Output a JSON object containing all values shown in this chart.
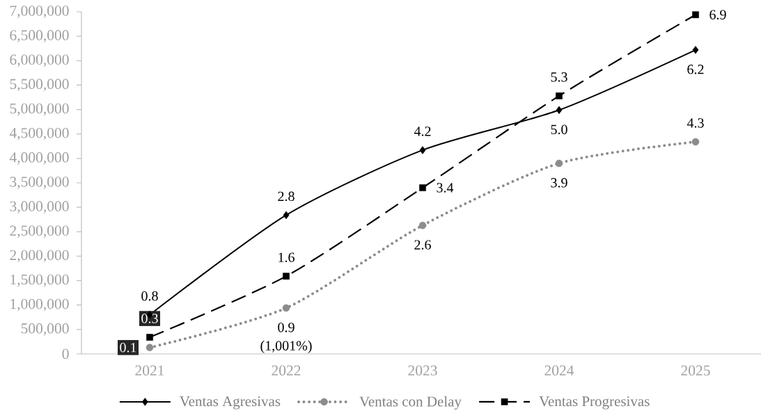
{
  "chart_data": {
    "type": "line",
    "categories": [
      "2021",
      "2022",
      "2023",
      "2024",
      "2025"
    ],
    "series": [
      {
        "name": "Ventas Agresivas",
        "color": "#000000",
        "marker": "diamond",
        "line_style": "solid",
        "values": [
          800000,
          2840000,
          4170000,
          4990000,
          6220000
        ]
      },
      {
        "name": "Ventas con Delay",
        "color": "#8c8c8c",
        "marker": "circle",
        "line_style": "dotted",
        "values": [
          130000,
          940000,
          2630000,
          3900000,
          4340000
        ]
      },
      {
        "name": "Ventas Progresivas",
        "color": "#000000",
        "marker": "square",
        "line_style": "dashed",
        "values": [
          340000,
          1590000,
          3400000,
          5280000,
          6940000
        ]
      }
    ],
    "ylim": [
      0,
      7000000
    ],
    "yticks": [
      0,
      {
        "value": 500000,
        "label": "500,000"
      },
      {
        "value": 1000000,
        "label": "1,000,000"
      },
      {
        "value": 1500000,
        "label": "1,500,000"
      },
      {
        "value": 2000000,
        "label": "2,000,000"
      },
      {
        "value": 2500000,
        "label": "2,500,000"
      },
      {
        "value": 3000000,
        "label": "3,000,000"
      },
      {
        "value": 3500000,
        "label": "3,500,000"
      },
      {
        "value": 4000000,
        "label": "4,000,000"
      },
      {
        "value": 4500000,
        "label": "4,500,000"
      },
      {
        "value": 5000000,
        "label": "5,000,000"
      },
      {
        "value": 5500000,
        "label": "5,500,000"
      },
      {
        "value": 6000000,
        "label": "6,000,000"
      },
      {
        "value": 6500000,
        "label": "6,500,000"
      },
      {
        "value": 7000000,
        "label": "7,000,000"
      }
    ],
    "legend": "bottom",
    "annotations": [
      {
        "text": "0.8",
        "x": "2021",
        "y": 800000
      },
      {
        "text": "2.8",
        "x": "2022",
        "y": 2840000
      },
      {
        "text": "4.2",
        "x": "2023",
        "y": 4170000
      },
      {
        "text": "5.0",
        "x": "2024",
        "y": 4990000
      },
      {
        "text": "6.2",
        "x": "2025",
        "y": 6220000
      },
      {
        "text": "0.1",
        "x": "2021",
        "y": 130000
      },
      {
        "text": "0.9",
        "x": "2022",
        "y": 940000
      },
      {
        "text": "2.6",
        "x": "2023",
        "y": 2630000
      },
      {
        "text": "3.9",
        "x": "2024",
        "y": 3900000
      },
      {
        "text": "4.3",
        "x": "2025",
        "y": 4340000
      },
      {
        "text": "0.3",
        "x": "2021",
        "y": 340000
      },
      {
        "text": "1.6",
        "x": "2022",
        "y": 1590000
      },
      {
        "text": "3.4",
        "x": "2023",
        "y": 3400000
      },
      {
        "text": "5.3",
        "x": "2024",
        "y": 5280000
      },
      {
        "text": "6.9",
        "x": "2025",
        "y": 6940000
      },
      {
        "text": "(1,001%)",
        "x": "2022",
        "y": 940000
      }
    ]
  }
}
